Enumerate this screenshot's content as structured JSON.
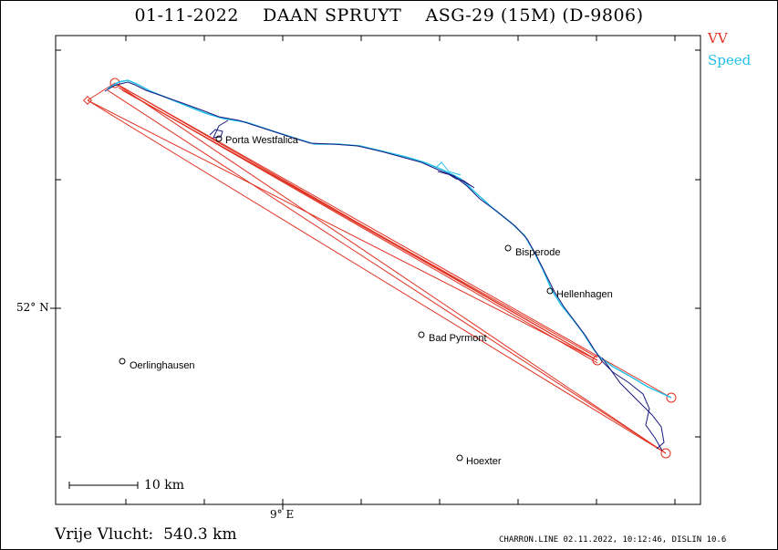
{
  "title": "01-11-2022    DAAN SPRUYT    ASG-29 (15M) (D-9806)",
  "legend": [
    {
      "label": "VV",
      "color": "#e03020"
    },
    {
      "label": "Speed",
      "color": "#20c0e8"
    }
  ],
  "axes": {
    "lat_label": "52° N",
    "lon_label": "9° E"
  },
  "places": [
    {
      "name": "Porta Westfalica"
    },
    {
      "name": "Bisperode"
    },
    {
      "name": "Hellenhagen"
    },
    {
      "name": "Bad Pyrmont"
    },
    {
      "name": "Oerlinghausen"
    },
    {
      "name": "Hoexter"
    }
  ],
  "scale": {
    "label": "10 km"
  },
  "distance_text": "Vrije Vlucht:  540.3 km",
  "footer": "CHARRON.LINE 02.11.2022, 10:12:46, DISLIN 10.6",
  "colors": {
    "task_line": "#e03020",
    "track_dark": "#1a1a80",
    "track_light": "#20c0e8"
  }
}
